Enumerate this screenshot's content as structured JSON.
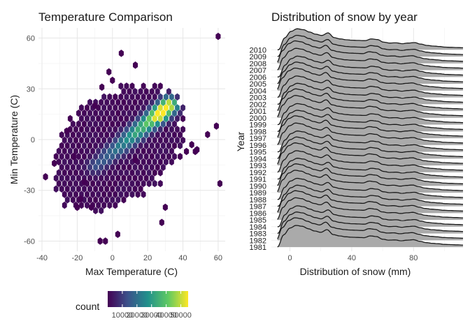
{
  "chart_data": [
    {
      "type": "heatmap",
      "subtype": "hexbin",
      "title": "Temperature Comparison",
      "xlabel": "Max Temperature (C)",
      "ylabel": "Min Temperature (C)",
      "xlim": [
        -42,
        64
      ],
      "ylim": [
        -66,
        66
      ],
      "xticks": [
        -40,
        -20,
        0,
        20,
        40,
        60
      ],
      "yticks": [
        -60,
        -30,
        0,
        30,
        60
      ],
      "grid": true,
      "legend": {
        "title": "count",
        "position": "bottom",
        "scale": "viridis",
        "range": [
          0,
          55000
        ],
        "ticks": [
          10000,
          20000,
          30000,
          40000,
          50000
        ],
        "tick_labels": [
          "10000",
          "20000",
          "30000",
          "40000",
          "50000"
        ]
      },
      "colors": [
        "#440154",
        "#3b528b",
        "#21918c",
        "#5ec962",
        "#fde725"
      ],
      "density_ridge": {
        "x_from": -10,
        "y_from": -16,
        "x_to": 32,
        "y_to": 20,
        "peak_x": 27,
        "peak_y": 15
      },
      "outliers": [
        [
          5,
          51
        ],
        [
          60,
          61
        ],
        [
          -2,
          40
        ],
        [
          -6,
          31
        ],
        [
          0,
          35
        ],
        [
          -10,
          20
        ],
        [
          13,
          44
        ],
        [
          61,
          -26
        ],
        [
          30,
          -40
        ],
        [
          28,
          -49
        ],
        [
          -4,
          -60
        ],
        [
          -7,
          -60
        ],
        [
          3,
          -56
        ],
        [
          -20,
          -40
        ],
        [
          -33,
          -14
        ],
        [
          -38,
          -22
        ],
        [
          -18,
          -35
        ],
        [
          -12,
          -40
        ],
        [
          -16,
          -25
        ],
        [
          -26,
          5
        ],
        [
          42,
          -7
        ],
        [
          45,
          -3
        ],
        [
          54,
          3
        ],
        [
          59,
          8
        ],
        [
          48,
          -6
        ],
        [
          47,
          -7
        ],
        [
          13,
          -12
        ],
        [
          -22,
          -10
        ]
      ],
      "lattice": {
        "x_from": -32,
        "x_to": 40,
        "y_from": -42,
        "y_to": 33
      }
    },
    {
      "type": "area",
      "subtype": "ridgeline",
      "title": "Distribution of snow by year",
      "xlabel": "Distribution of snow (mm)",
      "ylabel": "Year",
      "xlim": [
        -12,
        112
      ],
      "xticks": [
        0,
        40,
        80
      ],
      "categories": [
        "1981",
        "1982",
        "1983",
        "1984",
        "1985",
        "1986",
        "1987",
        "1988",
        "1989",
        "1990",
        "1991",
        "1992",
        "1993",
        "1994",
        "1995",
        "1996",
        "1997",
        "1998",
        "1999",
        "2000",
        "2001",
        "2002",
        "2003",
        "2004",
        "2005",
        "2006",
        "2007",
        "2008",
        "2009",
        "2010"
      ],
      "density_shape": {
        "x": [
          -8,
          -4,
          0,
          4,
          8,
          12,
          16,
          20,
          24,
          28,
          32,
          36,
          40,
          44,
          48,
          52,
          56,
          60,
          64,
          68,
          72,
          76,
          80,
          84,
          88,
          92,
          96,
          100,
          104,
          108,
          112
        ],
        "y": [
          0,
          0.55,
          0.85,
          0.97,
          0.93,
          0.82,
          0.72,
          0.66,
          0.78,
          0.56,
          0.5,
          0.46,
          0.44,
          0.43,
          0.42,
          0.5,
          0.47,
          0.35,
          0.31,
          0.32,
          0.28,
          0.31,
          0.33,
          0.26,
          0.2,
          0.17,
          0.15,
          0.12,
          0.11,
          0.1,
          0.09
        ]
      },
      "fill_color": "#aaaaaa",
      "line_color": "#1a1a1a",
      "grid": true
    }
  ]
}
